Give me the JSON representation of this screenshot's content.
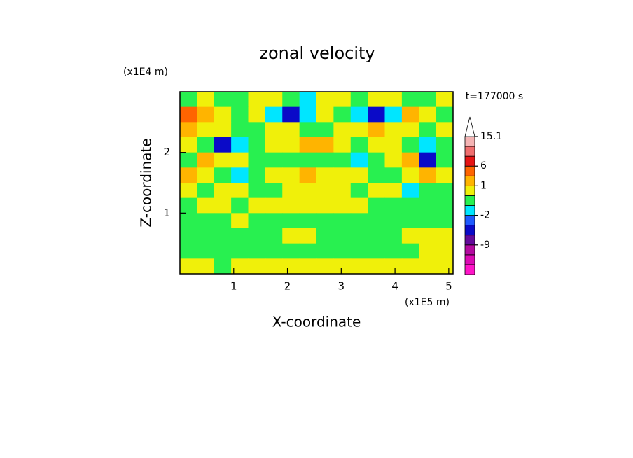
{
  "chart_data": {
    "type": "contour",
    "title": "zonal velocity",
    "xlabel": "X-coordinate",
    "ylabel": "Z-coordinate",
    "x_unit": "(x1E5 m)",
    "y_unit": "(x1E4 m)",
    "annotation": "t=177000 s",
    "xlim": [
      0,
      5.08
    ],
    "ylim": [
      0,
      3
    ],
    "xticks": [
      1,
      2,
      3,
      4,
      5
    ],
    "yticks": [
      1,
      2
    ],
    "z": [
      [
        -0.5,
        0.5,
        -0.5,
        -0.5,
        0.5,
        0.5,
        -0.5,
        -1.5,
        0.5,
        0.5,
        -0.5,
        0.5,
        0.5,
        -0.5,
        -0.5,
        0.5
      ],
      [
        3,
        2,
        0.5,
        -0.5,
        0.5,
        -1.5,
        -4,
        -1.5,
        0.5,
        -0.5,
        -1.5,
        -4,
        -1.5,
        2,
        0.5,
        -0.5
      ],
      [
        2,
        0.5,
        0.5,
        -0.5,
        -0.5,
        0.5,
        0.5,
        -0.5,
        -0.5,
        0.5,
        0.5,
        2,
        0.5,
        0.5,
        -0.5,
        0.5
      ],
      [
        0.5,
        -0.5,
        -4,
        -1.5,
        -0.5,
        0.5,
        0.5,
        2,
        2,
        0.5,
        -0.5,
        0.5,
        0.5,
        -0.5,
        -1.5,
        -0.5
      ],
      [
        -0.5,
        2,
        0.5,
        0.5,
        -0.5,
        -0.5,
        -0.5,
        -0.5,
        -0.5,
        -0.5,
        -1.5,
        -0.5,
        0.5,
        2,
        -4,
        -0.5
      ],
      [
        2,
        0.5,
        -0.5,
        -1.5,
        -0.5,
        0.5,
        0.5,
        2,
        0.5,
        0.5,
        0.5,
        -0.5,
        -0.5,
        0.5,
        2,
        0.5
      ],
      [
        0.5,
        -0.5,
        0.5,
        0.5,
        -0.5,
        -0.5,
        0.5,
        0.5,
        0.5,
        0.5,
        -0.5,
        0.5,
        0.5,
        -1.5,
        -0.5,
        -0.5
      ],
      [
        -0.5,
        0.5,
        0.5,
        -0.5,
        0.5,
        0.5,
        0.5,
        0.5,
        0.5,
        0.5,
        0.5,
        -0.5,
        -0.5,
        -0.5,
        -0.5,
        -0.5
      ],
      [
        -0.5,
        -0.5,
        -0.5,
        0.5,
        -0.5,
        -0.5,
        -0.5,
        -0.5,
        -0.5,
        -0.5,
        -0.5,
        -0.5,
        -0.5,
        -0.5,
        -0.5,
        -0.5
      ],
      [
        -0.5,
        -0.5,
        -0.5,
        -0.5,
        -0.5,
        -0.5,
        0.5,
        0.5,
        -0.5,
        -0.5,
        -0.5,
        -0.5,
        -0.5,
        0.5,
        0.5,
        0.5
      ],
      [
        -0.5,
        -0.5,
        -0.5,
        -0.5,
        -0.5,
        -0.5,
        -0.5,
        -0.5,
        -0.5,
        -0.5,
        -0.5,
        -0.5,
        -0.5,
        -0.5,
        0.5,
        0.5
      ],
      [
        0.5,
        0.5,
        -0.5,
        0.5,
        0.5,
        0.5,
        0.5,
        0.5,
        0.5,
        0.5,
        0.5,
        0.5,
        0.5,
        0.5,
        0.5,
        0.5
      ]
    ],
    "levels": [
      -15,
      -12,
      -9,
      -6,
      -3,
      -2,
      -1,
      0,
      1,
      3,
      6,
      9,
      12,
      15.1
    ],
    "colors": [
      "#ff14c8",
      "#dc0ab4",
      "#b40aa0",
      "#640a9b",
      "#0a0ac8",
      "#1e5aff",
      "#00e6ff",
      "#28f050",
      "#f0f00a",
      "#ffb400",
      "#ff6400",
      "#e61414",
      "#f06e6e",
      "#f5b4b4",
      "#ffffff"
    ],
    "colorbar_ticks": [
      15.1,
      6,
      1,
      -2,
      -9
    ]
  }
}
